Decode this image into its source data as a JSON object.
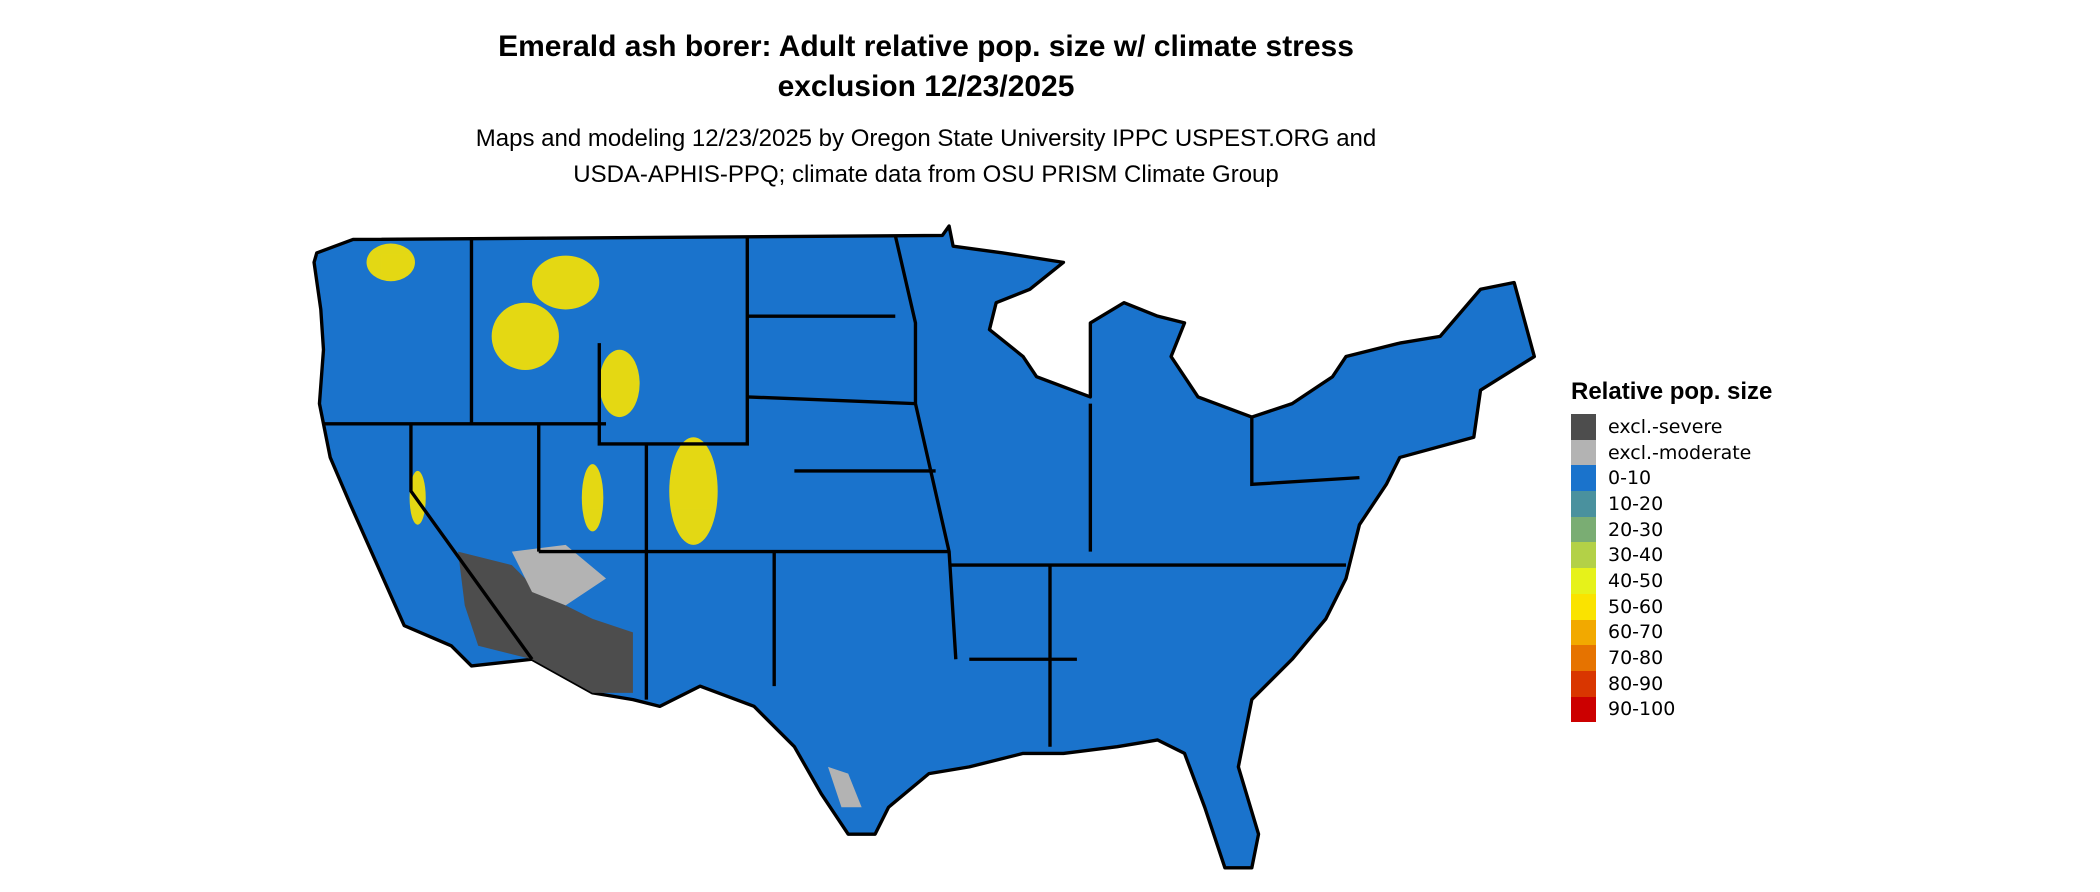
{
  "title_line1": "Emerald ash borer: Adult relative pop. size w/ climate stress",
  "title_line2": "exclusion 12/23/2025",
  "subtitle_line1": "Maps and modeling 12/23/2025 by Oregon State University IPPC USPEST.ORG and",
  "subtitle_line2": "USDA-APHIS-PPQ; climate data from OSU PRISM Climate Group",
  "map": {
    "region": "Contiguous United States",
    "dominant_class": "0-10"
  },
  "legend": {
    "title": "Relative pop. size",
    "items": [
      {
        "label": "excl.-severe",
        "color": "#4d4d4d"
      },
      {
        "label": "excl.-moderate",
        "color": "#b3b3b3"
      },
      {
        "label": "0-10",
        "color": "#1a73cc"
      },
      {
        "label": "10-20",
        "color": "#4a919e"
      },
      {
        "label": "20-30",
        "color": "#7aad73"
      },
      {
        "label": "30-40",
        "color": "#b3d147"
      },
      {
        "label": "40-50",
        "color": "#e6f21a"
      },
      {
        "label": "50-60",
        "color": "#fae300"
      },
      {
        "label": "60-70",
        "color": "#f2a900"
      },
      {
        "label": "70-80",
        "color": "#e67300"
      },
      {
        "label": "80-90",
        "color": "#d93600"
      },
      {
        "label": "90-100",
        "color": "#cc0000"
      }
    ]
  }
}
